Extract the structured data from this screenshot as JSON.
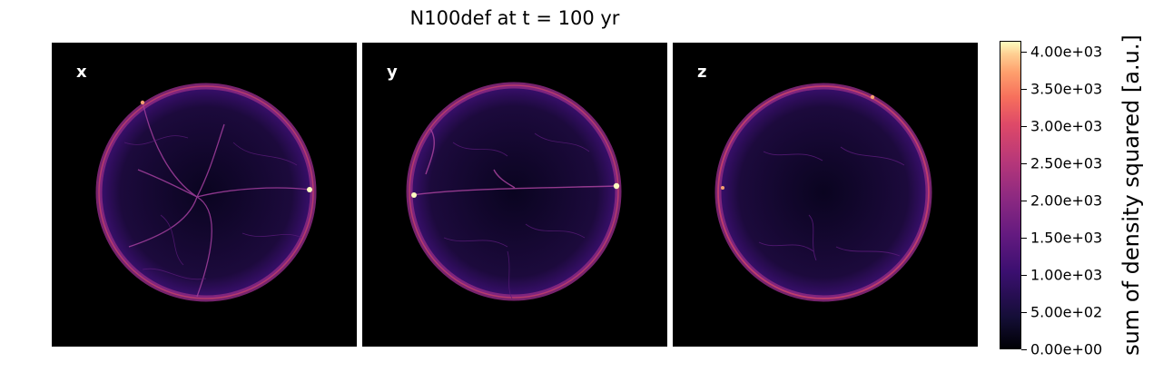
{
  "figure": {
    "title": "N100def at t = 100 yr",
    "panels": [
      {
        "label": "x"
      },
      {
        "label": "y"
      },
      {
        "label": "z"
      }
    ]
  },
  "colorbar": {
    "label": "sum of density squared [a.u.]",
    "colormap": "magma",
    "range": [
      0,
      4150
    ],
    "ticks": [
      {
        "value": 0,
        "label": "0.00e+00"
      },
      {
        "value": 500,
        "label": "5.00e+02"
      },
      {
        "value": 1000,
        "label": "1.00e+03"
      },
      {
        "value": 1500,
        "label": "1.50e+03"
      },
      {
        "value": 2000,
        "label": "2.00e+03"
      },
      {
        "value": 2500,
        "label": "2.50e+03"
      },
      {
        "value": 3000,
        "label": "3.00e+03"
      },
      {
        "value": 3500,
        "label": "3.50e+03"
      },
      {
        "value": 4000,
        "label": "4.00e+03"
      }
    ]
  },
  "colors": {
    "background": "#000000",
    "shell_dim": "#3b0f70",
    "shell_mid": "#8c2981",
    "shell_bright": "#de4968",
    "hotspot": "#fcfdbf"
  }
}
